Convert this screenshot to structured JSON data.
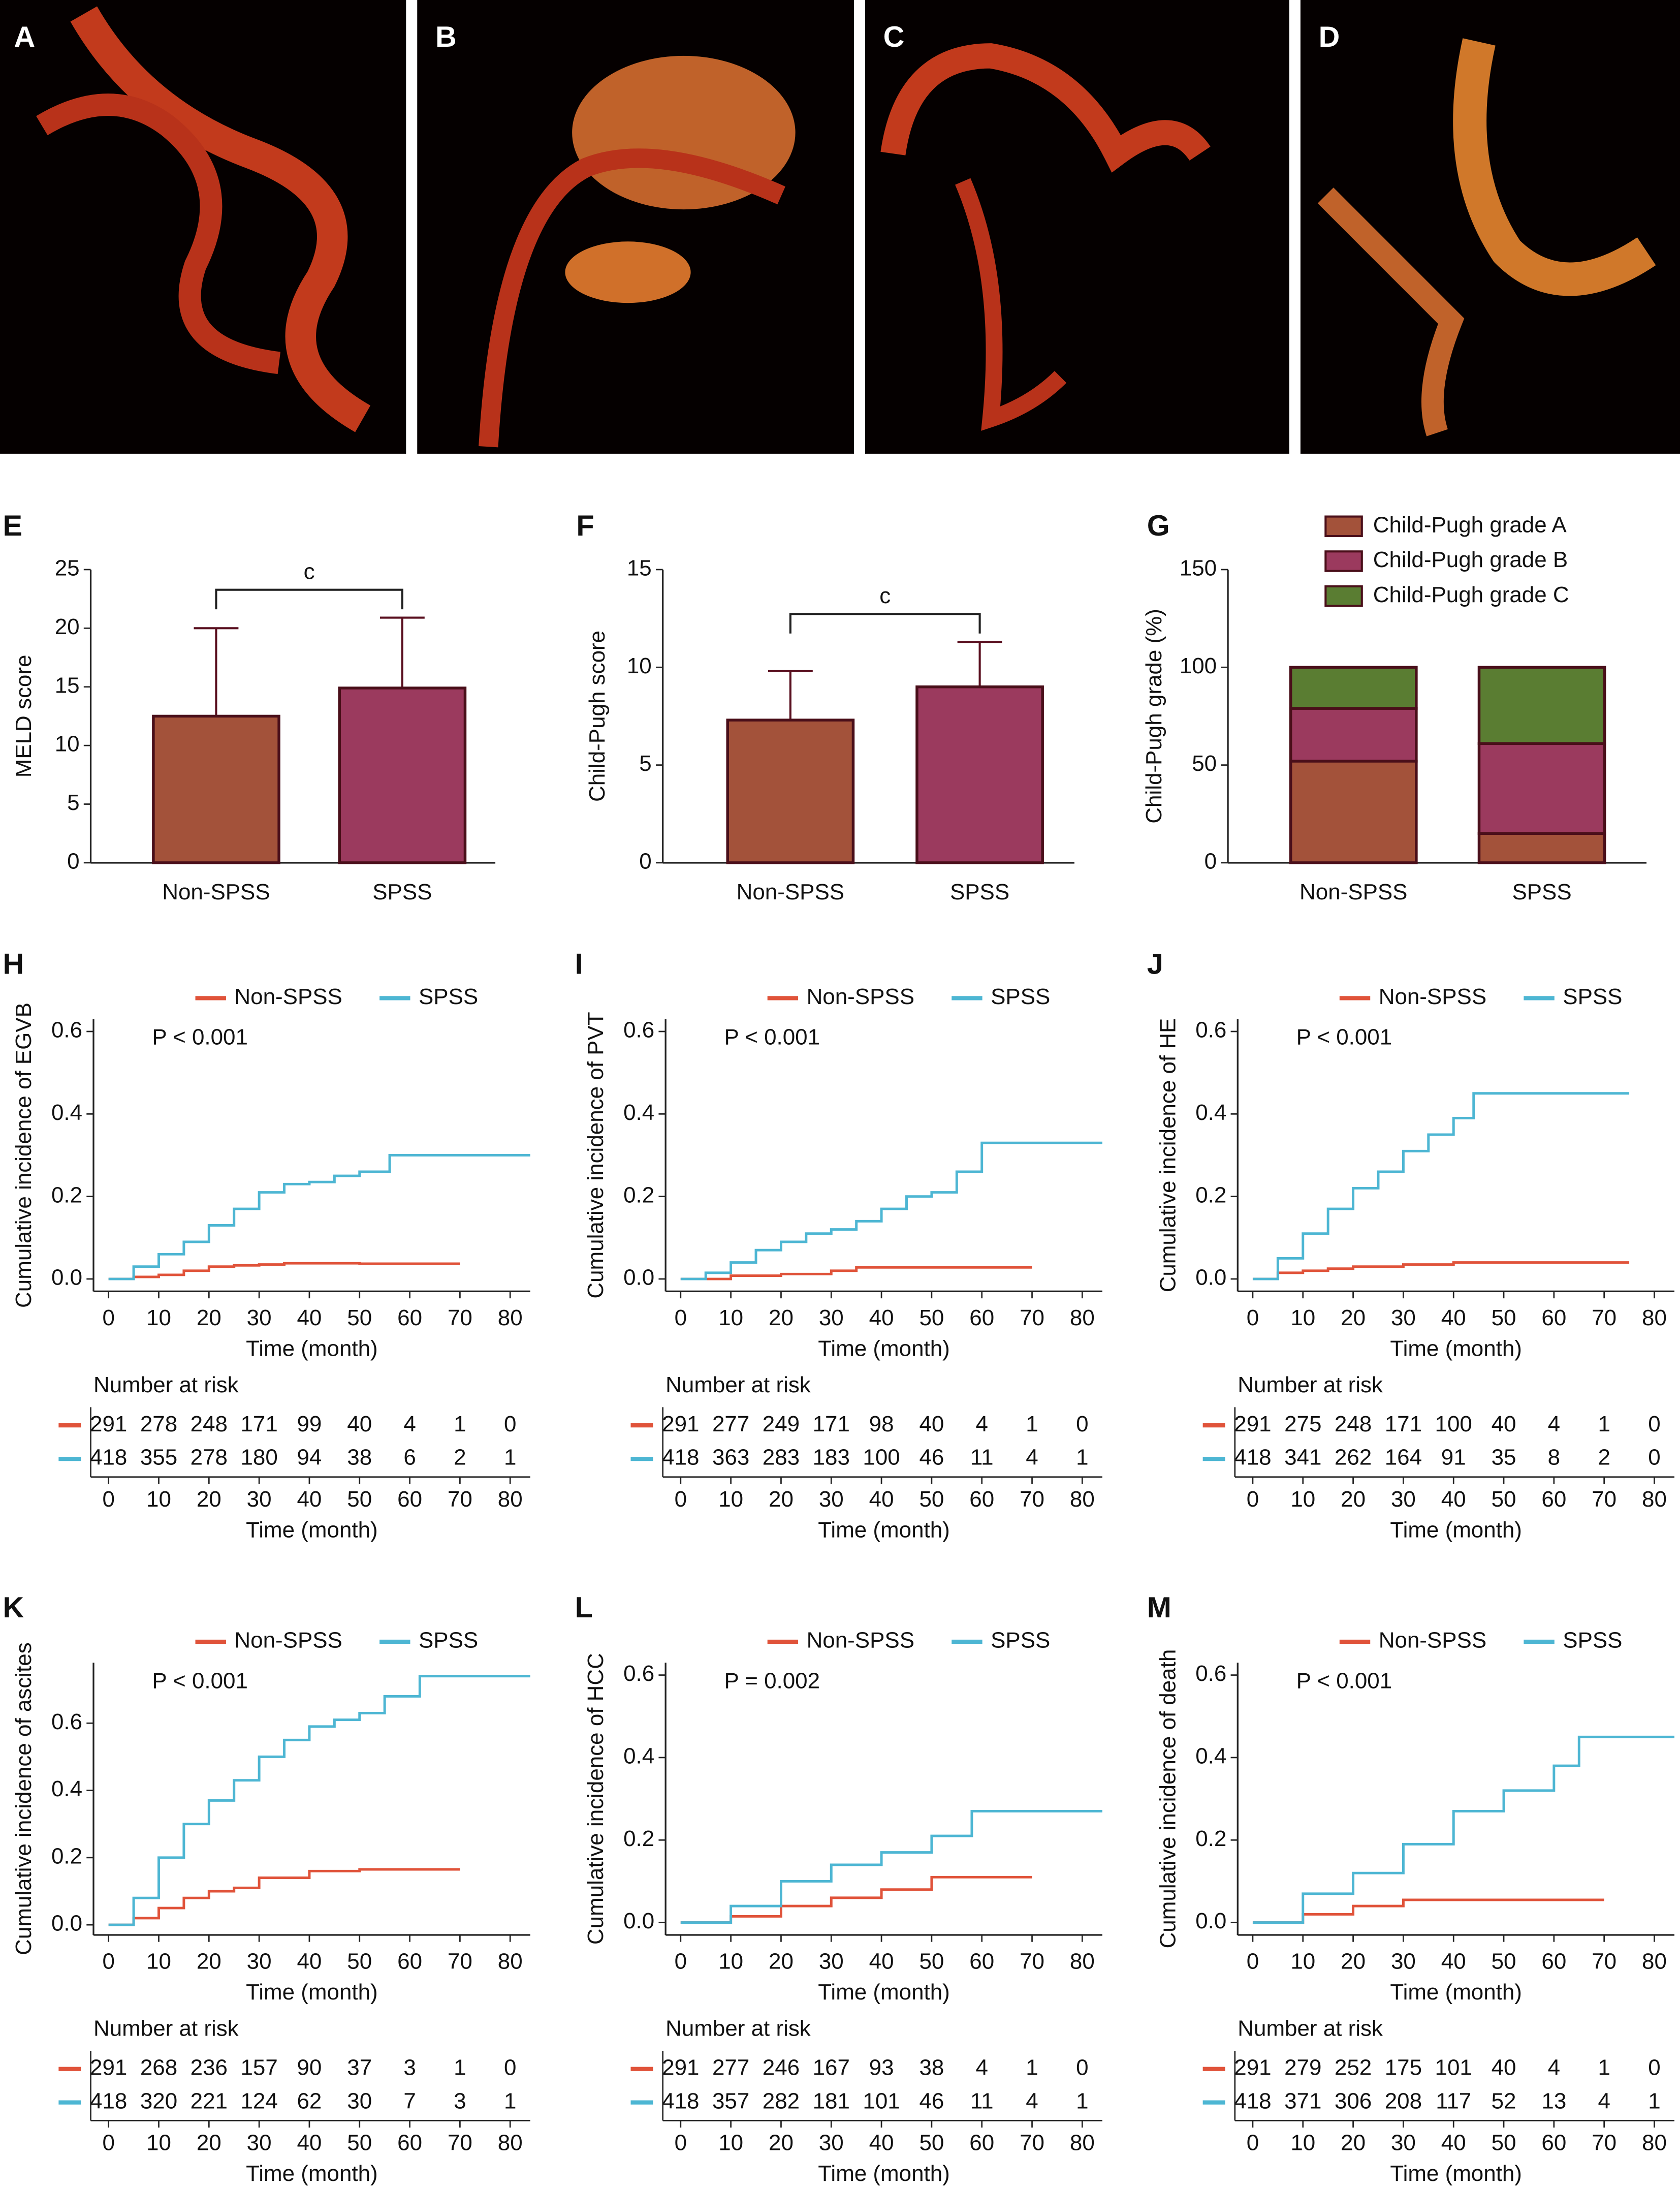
{
  "images": [
    {
      "label": "A"
    },
    {
      "label": "B"
    },
    {
      "label": "C"
    },
    {
      "label": "D"
    }
  ],
  "chart_data": [
    {
      "type": "bar",
      "panel": "E",
      "ylabel": "MELD score",
      "categories": [
        "Non-SPSS",
        "SPSS"
      ],
      "values": [
        12.5,
        14.9
      ],
      "errors": [
        7.5,
        6.0
      ],
      "colors": [
        "#a3523a",
        "#9b3a5e"
      ],
      "ylim": [
        0,
        25
      ],
      "yticks": [
        0,
        5,
        10,
        15,
        20,
        25
      ],
      "annotation": "c"
    },
    {
      "type": "bar",
      "panel": "F",
      "ylabel": "Child-Pugh score",
      "categories": [
        "Non-SPSS",
        "SPSS"
      ],
      "values": [
        7.3,
        9.0
      ],
      "errors": [
        2.5,
        2.3
      ],
      "colors": [
        "#a3523a",
        "#9b3a5e"
      ],
      "ylim": [
        0,
        15
      ],
      "yticks": [
        0,
        5,
        10,
        15
      ],
      "annotation": "c"
    },
    {
      "type": "stacked_bar",
      "panel": "G",
      "ylabel": "Child-Pugh grade (%)",
      "categories": [
        "Non-SPSS",
        "SPSS"
      ],
      "ylim": [
        0,
        150
      ],
      "yticks": [
        0,
        50,
        100,
        150
      ],
      "series": [
        {
          "name": "Child-Pugh grade A",
          "color": "#a3523a",
          "values": [
            52,
            15
          ]
        },
        {
          "name": "Child-Pugh grade B",
          "color": "#9b3a5e",
          "values": [
            27,
            46
          ]
        },
        {
          "name": "Child-Pugh grade C",
          "color": "#5a7d32",
          "values": [
            21,
            39
          ]
        }
      ]
    },
    {
      "type": "line",
      "step": true,
      "panel": "H",
      "ylabel": "Cumulative incidence of EGVB",
      "xlabel": "Time (month)",
      "annotation": "P < 0.001",
      "xlim": [
        -3,
        84
      ],
      "xticks": [
        0,
        10,
        20,
        30,
        40,
        50,
        60,
        70,
        80
      ],
      "ylim": [
        -0.03,
        0.63
      ],
      "yticks": [
        {
          "value": 0,
          "label": "0.0"
        },
        0.2,
        0.4,
        0.6
      ],
      "series": [
        {
          "name": "Non-SPSS",
          "color": "#e0533a",
          "x": [
            0,
            5,
            10,
            15,
            20,
            25,
            30,
            35,
            50,
            70
          ],
          "values": [
            0,
            0.005,
            0.01,
            0.02,
            0.03,
            0.033,
            0.035,
            0.038,
            0.037,
            0.037
          ]
        },
        {
          "name": "SPSS",
          "color": "#4db6d3",
          "x": [
            0,
            5,
            10,
            15,
            20,
            25,
            30,
            35,
            40,
            45,
            50,
            56,
            84
          ],
          "values": [
            0,
            0.03,
            0.06,
            0.09,
            0.13,
            0.17,
            0.21,
            0.23,
            0.235,
            0.25,
            0.26,
            0.3,
            0.3
          ]
        }
      ],
      "risk_table": {
        "title": "Number at risk",
        "rows": [
          [
            291,
            278,
            248,
            171,
            99,
            40,
            4,
            1,
            0
          ],
          [
            418,
            355,
            278,
            180,
            94,
            38,
            6,
            2,
            1
          ]
        ]
      }
    },
    {
      "type": "line",
      "step": true,
      "panel": "I",
      "ylabel": "Cumulative incidence of PVT",
      "xlabel": "Time (month)",
      "annotation": "P < 0.001",
      "xlim": [
        -3,
        84
      ],
      "xticks": [
        0,
        10,
        20,
        30,
        40,
        50,
        60,
        70,
        80
      ],
      "ylim": [
        -0.03,
        0.63
      ],
      "yticks": [
        {
          "value": 0,
          "label": "0.0"
        },
        0.2,
        0.4,
        0.6
      ],
      "series": [
        {
          "name": "Non-SPSS",
          "color": "#e0533a",
          "x": [
            0,
            10,
            20,
            30,
            35,
            40,
            70
          ],
          "values": [
            0,
            0.008,
            0.012,
            0.02,
            0.028,
            0.028,
            0.028
          ]
        },
        {
          "name": "SPSS",
          "color": "#4db6d3",
          "x": [
            0,
            5,
            10,
            15,
            20,
            25,
            30,
            35,
            40,
            45,
            50,
            55,
            60,
            84
          ],
          "values": [
            0,
            0.015,
            0.04,
            0.07,
            0.09,
            0.11,
            0.12,
            0.14,
            0.17,
            0.2,
            0.21,
            0.26,
            0.33,
            0.33
          ]
        }
      ],
      "risk_table": {
        "title": "Number at risk",
        "rows": [
          [
            291,
            277,
            249,
            171,
            98,
            40,
            4,
            1,
            0
          ],
          [
            418,
            363,
            283,
            183,
            100,
            46,
            11,
            4,
            1
          ]
        ]
      }
    },
    {
      "type": "line",
      "step": true,
      "panel": "J",
      "ylabel": "Cumulative incidence of HE",
      "xlabel": "Time (month)",
      "annotation": "P < 0.001",
      "xlim": [
        -3,
        84
      ],
      "xticks": [
        0,
        10,
        20,
        30,
        40,
        50,
        60,
        70,
        80
      ],
      "ylim": [
        -0.03,
        0.63
      ],
      "yticks": [
        {
          "value": 0,
          "label": "0.0"
        },
        0.2,
        0.4,
        0.6
      ],
      "series": [
        {
          "name": "Non-SPSS",
          "color": "#e0533a",
          "x": [
            0,
            5,
            10,
            15,
            20,
            30,
            40,
            75
          ],
          "values": [
            0,
            0.015,
            0.02,
            0.025,
            0.03,
            0.035,
            0.04,
            0.04
          ]
        },
        {
          "name": "SPSS",
          "color": "#4db6d3",
          "x": [
            0,
            5,
            10,
            15,
            20,
            25,
            30,
            35,
            40,
            44,
            75
          ],
          "values": [
            0,
            0.05,
            0.11,
            0.17,
            0.22,
            0.26,
            0.31,
            0.35,
            0.39,
            0.45,
            0.45
          ]
        }
      ],
      "risk_table": {
        "title": "Number at risk",
        "rows": [
          [
            291,
            275,
            248,
            171,
            100,
            40,
            4,
            1,
            0
          ],
          [
            418,
            341,
            262,
            164,
            91,
            35,
            8,
            2,
            0
          ]
        ]
      }
    },
    {
      "type": "line",
      "step": true,
      "panel": "K",
      "ylabel": "Cumulative incidence of ascites",
      "xlabel": "Time (month)",
      "annotation": "P < 0.001",
      "xlim": [
        -3,
        84
      ],
      "xticks": [
        0,
        10,
        20,
        30,
        40,
        50,
        60,
        70,
        80
      ],
      "ylim": [
        -0.03,
        0.78
      ],
      "yticks": [
        {
          "value": 0,
          "label": "0.0"
        },
        0.2,
        0.4,
        0.6
      ],
      "series": [
        {
          "name": "Non-SPSS",
          "color": "#e0533a",
          "x": [
            0,
            5,
            10,
            15,
            20,
            25,
            30,
            40,
            50,
            70
          ],
          "values": [
            0,
            0.02,
            0.05,
            0.08,
            0.1,
            0.11,
            0.14,
            0.16,
            0.165,
            0.165
          ]
        },
        {
          "name": "SPSS",
          "color": "#4db6d3",
          "x": [
            0,
            5,
            10,
            15,
            20,
            25,
            30,
            35,
            40,
            45,
            50,
            55,
            62,
            84
          ],
          "values": [
            0,
            0.08,
            0.2,
            0.3,
            0.37,
            0.43,
            0.5,
            0.55,
            0.59,
            0.61,
            0.63,
            0.68,
            0.74,
            0.74
          ]
        }
      ],
      "risk_table": {
        "title": "Number at risk",
        "rows": [
          [
            291,
            268,
            236,
            157,
            90,
            37,
            3,
            1,
            0
          ],
          [
            418,
            320,
            221,
            124,
            62,
            30,
            7,
            3,
            1
          ]
        ]
      }
    },
    {
      "type": "line",
      "step": true,
      "panel": "L",
      "ylabel": "Cumulative incidence of HCC",
      "xlabel": "Time (month)",
      "annotation": "P = 0.002",
      "xlim": [
        -3,
        84
      ],
      "xticks": [
        0,
        10,
        20,
        30,
        40,
        50,
        60,
        70,
        80
      ],
      "ylim": [
        -0.03,
        0.63
      ],
      "yticks": [
        {
          "value": 0,
          "label": "0.0"
        },
        0.2,
        0.4,
        0.6
      ],
      "series": [
        {
          "name": "Non-SPSS",
          "color": "#e0533a",
          "x": [
            0,
            10,
            20,
            30,
            40,
            50,
            70
          ],
          "values": [
            0,
            0.015,
            0.04,
            0.06,
            0.08,
            0.11,
            0.11
          ]
        },
        {
          "name": "SPSS",
          "color": "#4db6d3",
          "x": [
            0,
            10,
            20,
            30,
            40,
            50,
            58,
            84
          ],
          "values": [
            0,
            0.04,
            0.1,
            0.14,
            0.17,
            0.21,
            0.27,
            0.27
          ]
        }
      ],
      "risk_table": {
        "title": "Number at risk",
        "rows": [
          [
            291,
            277,
            246,
            167,
            93,
            38,
            4,
            1,
            0
          ],
          [
            418,
            357,
            282,
            181,
            101,
            46,
            11,
            4,
            1
          ]
        ]
      }
    },
    {
      "type": "line",
      "step": true,
      "panel": "M",
      "ylabel": "Cumulative incidence of death",
      "xlabel": "Time (month)",
      "annotation": "P < 0.001",
      "xlim": [
        -3,
        84
      ],
      "xticks": [
        0,
        10,
        20,
        30,
        40,
        50,
        60,
        70,
        80
      ],
      "ylim": [
        -0.03,
        0.63
      ],
      "yticks": [
        {
          "value": 0,
          "label": "0.0"
        },
        0.2,
        0.4,
        0.6
      ],
      "series": [
        {
          "name": "Non-SPSS",
          "color": "#e0533a",
          "x": [
            0,
            10,
            20,
            30,
            70
          ],
          "values": [
            0,
            0.02,
            0.04,
            0.055,
            0.055
          ]
        },
        {
          "name": "SPSS",
          "color": "#4db6d3",
          "x": [
            0,
            10,
            20,
            30,
            40,
            50,
            60,
            65,
            84
          ],
          "values": [
            0,
            0.07,
            0.12,
            0.19,
            0.27,
            0.32,
            0.38,
            0.45,
            0.45
          ]
        }
      ],
      "risk_table": {
        "title": "Number at risk",
        "rows": [
          [
            291,
            279,
            252,
            175,
            101,
            40,
            4,
            1,
            0
          ],
          [
            418,
            371,
            306,
            208,
            117,
            52,
            13,
            4,
            1
          ]
        ]
      }
    }
  ]
}
